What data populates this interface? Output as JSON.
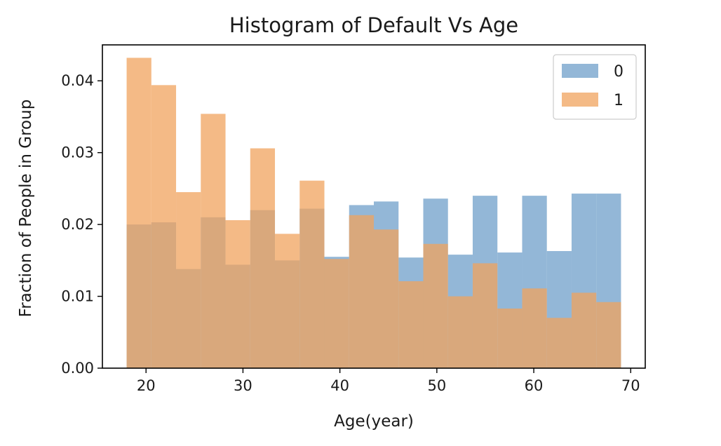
{
  "chart_data": {
    "type": "bar",
    "title": "Histogram of Default Vs Age",
    "xlabel": "Age(year)",
    "ylabel": "Fraction of People in Group",
    "xlim": [
      15.5,
      71.5
    ],
    "ylim": [
      0,
      0.045
    ],
    "xticks": [
      20,
      30,
      40,
      50,
      60,
      70
    ],
    "yticks": [
      0.0,
      0.01,
      0.02,
      0.03,
      0.04
    ],
    "ytick_labels": [
      "0.00",
      "0.01",
      "0.02",
      "0.03",
      "0.04"
    ],
    "legend_position": "top-right",
    "grid": false,
    "bin_edges": [
      18,
      20.55,
      23.1,
      25.65,
      28.2,
      30.75,
      33.3,
      35.85,
      38.4,
      40.95,
      43.5,
      46.05,
      48.6,
      51.15,
      53.7,
      56.25,
      58.8,
      61.35,
      63.9,
      66.45,
      69
    ],
    "series": [
      {
        "name": "0",
        "color": "#6f9fc9",
        "values": [
          0.02,
          0.0203,
          0.0138,
          0.021,
          0.0144,
          0.022,
          0.015,
          0.0222,
          0.0155,
          0.0227,
          0.0232,
          0.0154,
          0.0236,
          0.0158,
          0.024,
          0.0161,
          0.024,
          0.0163,
          0.0243,
          0.0243
        ]
      },
      {
        "name": "1",
        "color": "#f0a35d",
        "values": [
          0.0432,
          0.0394,
          0.0245,
          0.0354,
          0.0206,
          0.0306,
          0.0187,
          0.0261,
          0.0152,
          0.0213,
          0.0193,
          0.0121,
          0.0173,
          0.01,
          0.0146,
          0.0083,
          0.0111,
          0.007,
          0.0105,
          0.0092
        ]
      }
    ]
  }
}
